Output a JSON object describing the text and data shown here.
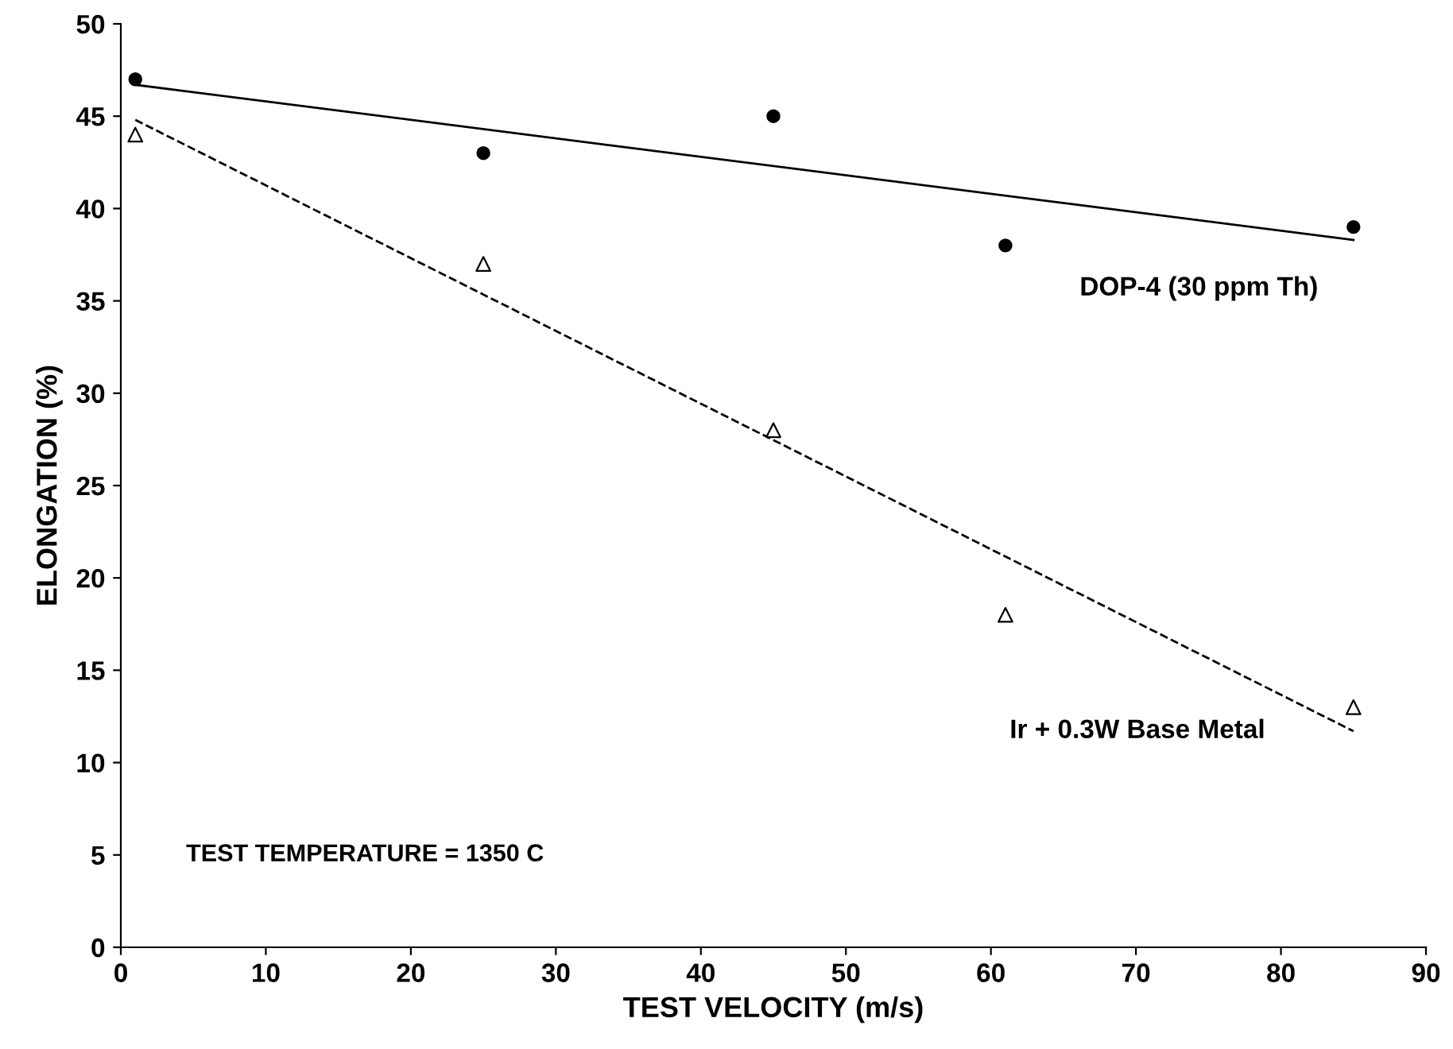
{
  "chart_data": {
    "type": "scatter",
    "xlabel": "TEST VELOCITY (m/s)",
    "ylabel": "ELONGATION (%)",
    "xlim": [
      0,
      90
    ],
    "xticks": [
      0,
      10,
      20,
      30,
      40,
      50,
      60,
      70,
      80,
      90
    ],
    "ylim": [
      0,
      50
    ],
    "yticks": [
      0,
      5,
      10,
      15,
      20,
      25,
      30,
      35,
      40,
      45,
      50
    ],
    "grid": false,
    "legend": false,
    "annotations": [
      "TEST TEMPERATURE = 1350 C"
    ],
    "series": [
      {
        "marker": "circle",
        "color": "#000000",
        "x": [
          1,
          25,
          45,
          61,
          85
        ],
        "values": [
          47,
          43,
          45,
          38,
          39
        ]
      },
      {
        "marker": "triangle",
        "color": "#000000",
        "x": [
          1,
          25,
          45,
          61,
          85
        ],
        "values": [
          44,
          37,
          28,
          18,
          13
        ]
      },
      {
        "name": "DOP-4 (30 ppm Th)",
        "type": "line",
        "line_style": "solid",
        "color": "#000000",
        "x": [
          1,
          85
        ],
        "values": [
          46.7,
          38.3
        ]
      },
      {
        "name": "Ir + 0.3W Base Metal",
        "type": "line",
        "line_style": "dashed",
        "color": "#000000",
        "x": [
          1,
          85
        ],
        "values": [
          44.8,
          11.7
        ]
      }
    ]
  }
}
